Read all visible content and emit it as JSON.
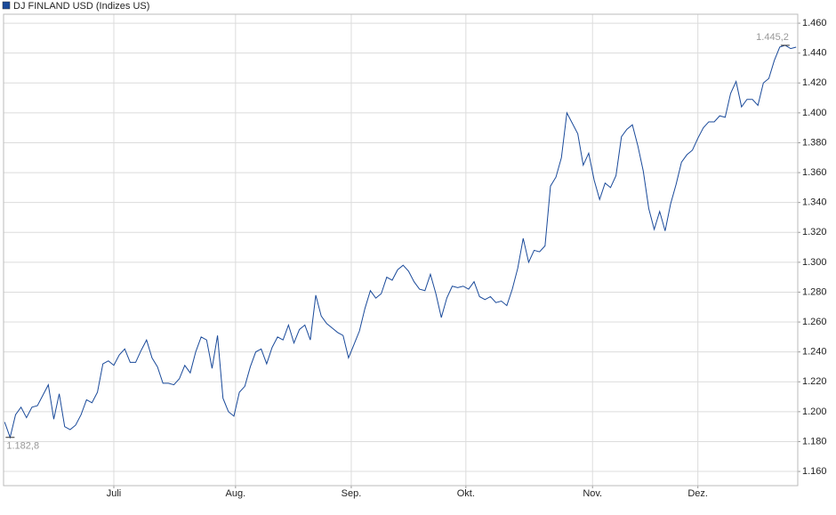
{
  "chart_data": {
    "type": "line",
    "series": [
      {
        "name": "DJ FINLAND USD (Indizes US)",
        "color": "#1a4a9a",
        "values": [
          1193,
          1182.8,
          1198,
          1203,
          1196,
          1203,
          1204,
          1211,
          1218,
          1195,
          1212,
          1190,
          1188,
          1191,
          1198,
          1208,
          1206,
          1213,
          1232,
          1234,
          1231,
          1238,
          1242,
          1233,
          1233,
          1241,
          1248,
          1236,
          1230,
          1219,
          1219,
          1218,
          1222,
          1231,
          1226,
          1240,
          1250,
          1248,
          1229,
          1251,
          1209,
          1200,
          1197,
          1213,
          1217,
          1230,
          1240,
          1242,
          1232,
          1243,
          1250,
          1248,
          1258,
          1246,
          1255,
          1258,
          1248,
          1278,
          1264,
          1259,
          1256,
          1253,
          1251,
          1236,
          1245,
          1254,
          1269,
          1281,
          1276,
          1279,
          1290,
          1288,
          1295,
          1298,
          1294,
          1287,
          1282,
          1281,
          1292,
          1279,
          1263,
          1276,
          1284,
          1283,
          1284,
          1282,
          1287,
          1277,
          1275,
          1277,
          1273,
          1274,
          1271,
          1282,
          1296,
          1316,
          1300,
          1308,
          1307,
          1311,
          1351,
          1357,
          1370,
          1400,
          1393,
          1386,
          1365,
          1373,
          1355,
          1342,
          1353,
          1350,
          1358,
          1384,
          1389,
          1392,
          1378,
          1361,
          1336,
          1322,
          1334,
          1321,
          1339,
          1352,
          1367,
          1372,
          1375,
          1383,
          1390,
          1394,
          1394,
          1398,
          1397,
          1413,
          1421,
          1404,
          1409,
          1409,
          1405,
          1420,
          1423,
          1435,
          1444,
          1445.2,
          1443,
          1444
        ]
      }
    ],
    "xlim": [
      -0.2,
      145.3
    ],
    "xticks": [
      {
        "value": 20,
        "label": "Juli"
      },
      {
        "value": 42.3,
        "label": "Aug."
      },
      {
        "value": 63.5,
        "label": "Sep."
      },
      {
        "value": 84.5,
        "label": "Okt."
      },
      {
        "value": 107.7,
        "label": "Nov."
      },
      {
        "value": 127,
        "label": "Dez."
      }
    ],
    "ylim": [
      1150.5,
      1466
    ],
    "yticks": [
      {
        "value": 1160,
        "label": "1.160"
      },
      {
        "value": 1180,
        "label": "1.180"
      },
      {
        "value": 1200,
        "label": "1.200"
      },
      {
        "value": 1220,
        "label": "1.220"
      },
      {
        "value": 1240,
        "label": "1.240"
      },
      {
        "value": 1260,
        "label": "1.260"
      },
      {
        "value": 1280,
        "label": "1.280"
      },
      {
        "value": 1300,
        "label": "1.300"
      },
      {
        "value": 1320,
        "label": "1.320"
      },
      {
        "value": 1340,
        "label": "1.340"
      },
      {
        "value": 1360,
        "label": "1.360"
      },
      {
        "value": 1380,
        "label": "1.380"
      },
      {
        "value": 1400,
        "label": "1.400"
      },
      {
        "value": 1420,
        "label": "1.420"
      },
      {
        "value": 1440,
        "label": "1.440"
      },
      {
        "value": 1460,
        "label": "1.460"
      }
    ],
    "grid": true,
    "annotations": [
      {
        "x": 1,
        "value": 1182.8,
        "label": "1.182,8",
        "position": "below"
      },
      {
        "x": 143,
        "value": 1445.2,
        "label": "1.445,2",
        "position": "above"
      }
    ]
  }
}
